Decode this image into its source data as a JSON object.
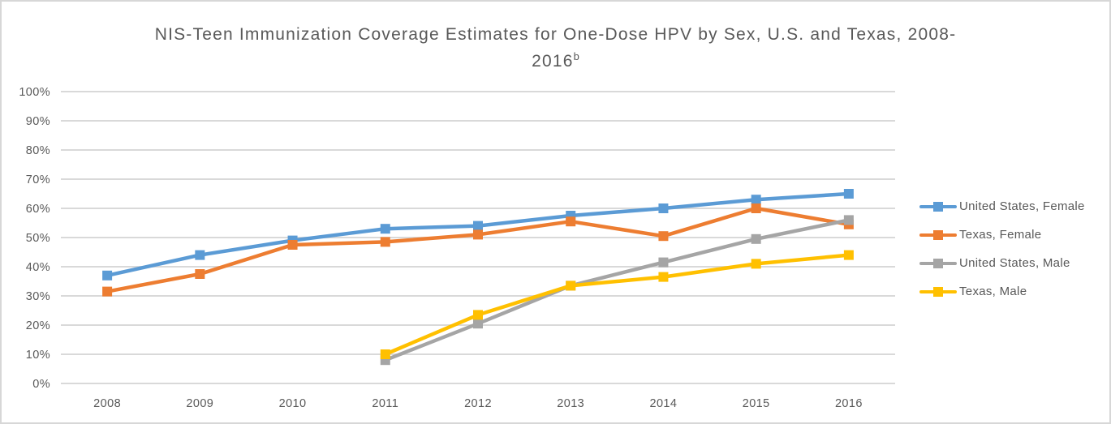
{
  "title": {
    "line1": "NIS-Teen Immunization Coverage Estimates for One-Dose HPV by Sex, U.S. and Texas, 2008-",
    "line2": "2016",
    "superscript": "b"
  },
  "colors": {
    "series_blue": "#5B9BD5",
    "series_orange": "#ED7D31",
    "series_gray": "#A5A5A5",
    "series_yellow": "#FFC000",
    "gridline": "#D9D9D9",
    "axis_line": "#D9D9D9",
    "text": "#595959",
    "frame_border": "#D7D7D7",
    "background": "#FFFFFF"
  },
  "chart_data": {
    "type": "line",
    "title": "NIS-Teen Immunization Coverage Estimates for One-Dose HPV by Sex, U.S. and Texas, 2008-2016(b)",
    "xlabel": "",
    "ylabel": "",
    "categories": [
      "2008",
      "2009",
      "2010",
      "2011",
      "2012",
      "2013",
      "2014",
      "2015",
      "2016"
    ],
    "series": [
      {
        "name": "United States, Female",
        "color": "#5B9BD5",
        "values": [
          37,
          44,
          49,
          53,
          54,
          57.5,
          60,
          63,
          65
        ]
      },
      {
        "name": "Texas, Female",
        "color": "#ED7D31",
        "values": [
          31.5,
          37.5,
          47.5,
          48.5,
          51,
          55.5,
          50.5,
          60,
          54.5
        ]
      },
      {
        "name": "United States, Male",
        "color": "#A5A5A5",
        "values": [
          null,
          null,
          null,
          8,
          20.5,
          33.5,
          41.5,
          49.5,
          56
        ]
      },
      {
        "name": "Texas, Male",
        "color": "#FFC000",
        "values": [
          null,
          null,
          null,
          10,
          23.5,
          33.5,
          36.5,
          41,
          44
        ]
      }
    ],
    "y_axis": {
      "min": 0,
      "max": 100,
      "step": 10,
      "tick_labels": [
        "0%",
        "10%",
        "20%",
        "30%",
        "40%",
        "50%",
        "60%",
        "70%",
        "80%",
        "90%",
        "100%"
      ]
    },
    "ylim": [
      0,
      100
    ],
    "grid": true,
    "legend_position": "right",
    "marker": "square"
  }
}
